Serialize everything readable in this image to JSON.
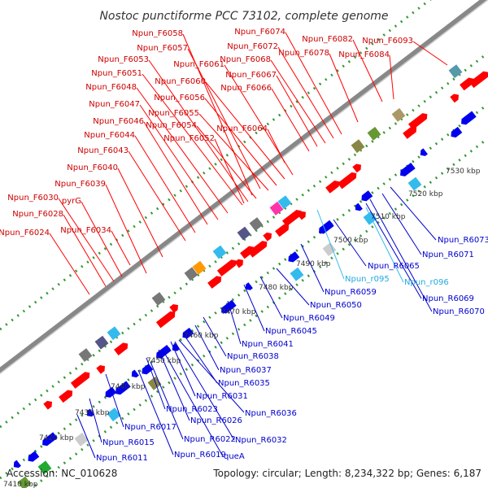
{
  "title": "Nostoc punctiforme PCC 73102, complete genome",
  "footer": {
    "accession": "Accession: NC_010628",
    "info": "Topology: circular; Length: 8,234,322 bp; Genes: 6,187"
  },
  "forward_labels": [
    "Npun_F6058",
    "Npun_F6057",
    "Npun_F6053",
    "Npun_F6051",
    "Npun_F6048",
    "Npun_F6047",
    "Npun_F6046",
    "Npun_F6044",
    "Npun_F6043",
    "Npun_F6040",
    "Npun_F6039",
    "Npun_F6030",
    "pyrG",
    "Npun_F6028",
    "Npun_F6034",
    "Npun_F6024",
    "Npun_F6061",
    "Npun_F6060",
    "Npun_F6056",
    "Npun_F6055",
    "Npun_F6054",
    "Npun_F6052",
    "Npun_F6074",
    "Npun_F6072",
    "Npun_F6068",
    "Npun_F6067",
    "Npun_F6066",
    "Npun_F6064",
    "Npun_F6078",
    "Npun_F6082",
    "Npun_F6084",
    "Npun_F6093"
  ],
  "reverse_labels": [
    "Npun_R6073",
    "Npun_R6071",
    "Npun_R6065",
    "Npun_R6059",
    "Npun_R6050",
    "Npun_R6049",
    "Npun_R6045",
    "Npun_R6041",
    "Npun_R6038",
    "Npun_R6037",
    "Npun_R6035",
    "Npun_R6031",
    "Npun_R6036",
    "Npun_R6023",
    "Npun_R6026",
    "Npun_R6017",
    "Npun_R6022",
    "Npun_R6032",
    "Npun_R6015",
    "Npun_R6019",
    "queA",
    "Npun_R6011",
    "Npun_R6069",
    "Npun_R6070"
  ],
  "rna_labels": [
    "Npun_r095",
    "Npun_r096"
  ],
  "ticks": [
    "7410 kbp",
    "7420 kbp",
    "7430 kbp",
    "7440 kbp",
    "7450 kbp",
    "7460 kbp",
    "7470 kbp",
    "7480 kbp",
    "7490 kbp",
    "7500 kbp",
    "7510 kbp",
    "7520 kbp",
    "7530 kbp"
  ],
  "colors": {
    "forward": "#ff0000",
    "reverse": "#0000ee",
    "rna": "#33bbee",
    "backbone": "#888888",
    "ring_dots": "#339933",
    "grey_gene": "#777777"
  }
}
